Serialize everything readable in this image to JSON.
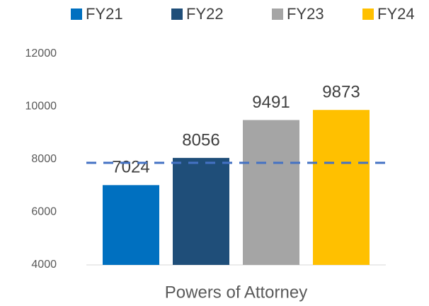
{
  "chart_data": {
    "type": "bar",
    "categories": [
      "Powers of Attorney"
    ],
    "series": [
      {
        "name": "FY21",
        "color": "#0070c0",
        "values": [
          7024
        ]
      },
      {
        "name": "FY22",
        "color": "#1f4e79",
        "values": [
          8056
        ]
      },
      {
        "name": "FY23",
        "color": "#a5a5a5",
        "values": [
          9491
        ]
      },
      {
        "name": "FY24",
        "color": "#ffc000",
        "values": [
          9873
        ]
      }
    ],
    "ylim": [
      4000,
      12000
    ],
    "yticks": [
      4000,
      6000,
      8000,
      10000,
      12000
    ],
    "reference_line": {
      "value": 7870,
      "color": "#4472c4",
      "style": "dashed"
    },
    "grid": false,
    "legend": "top"
  }
}
